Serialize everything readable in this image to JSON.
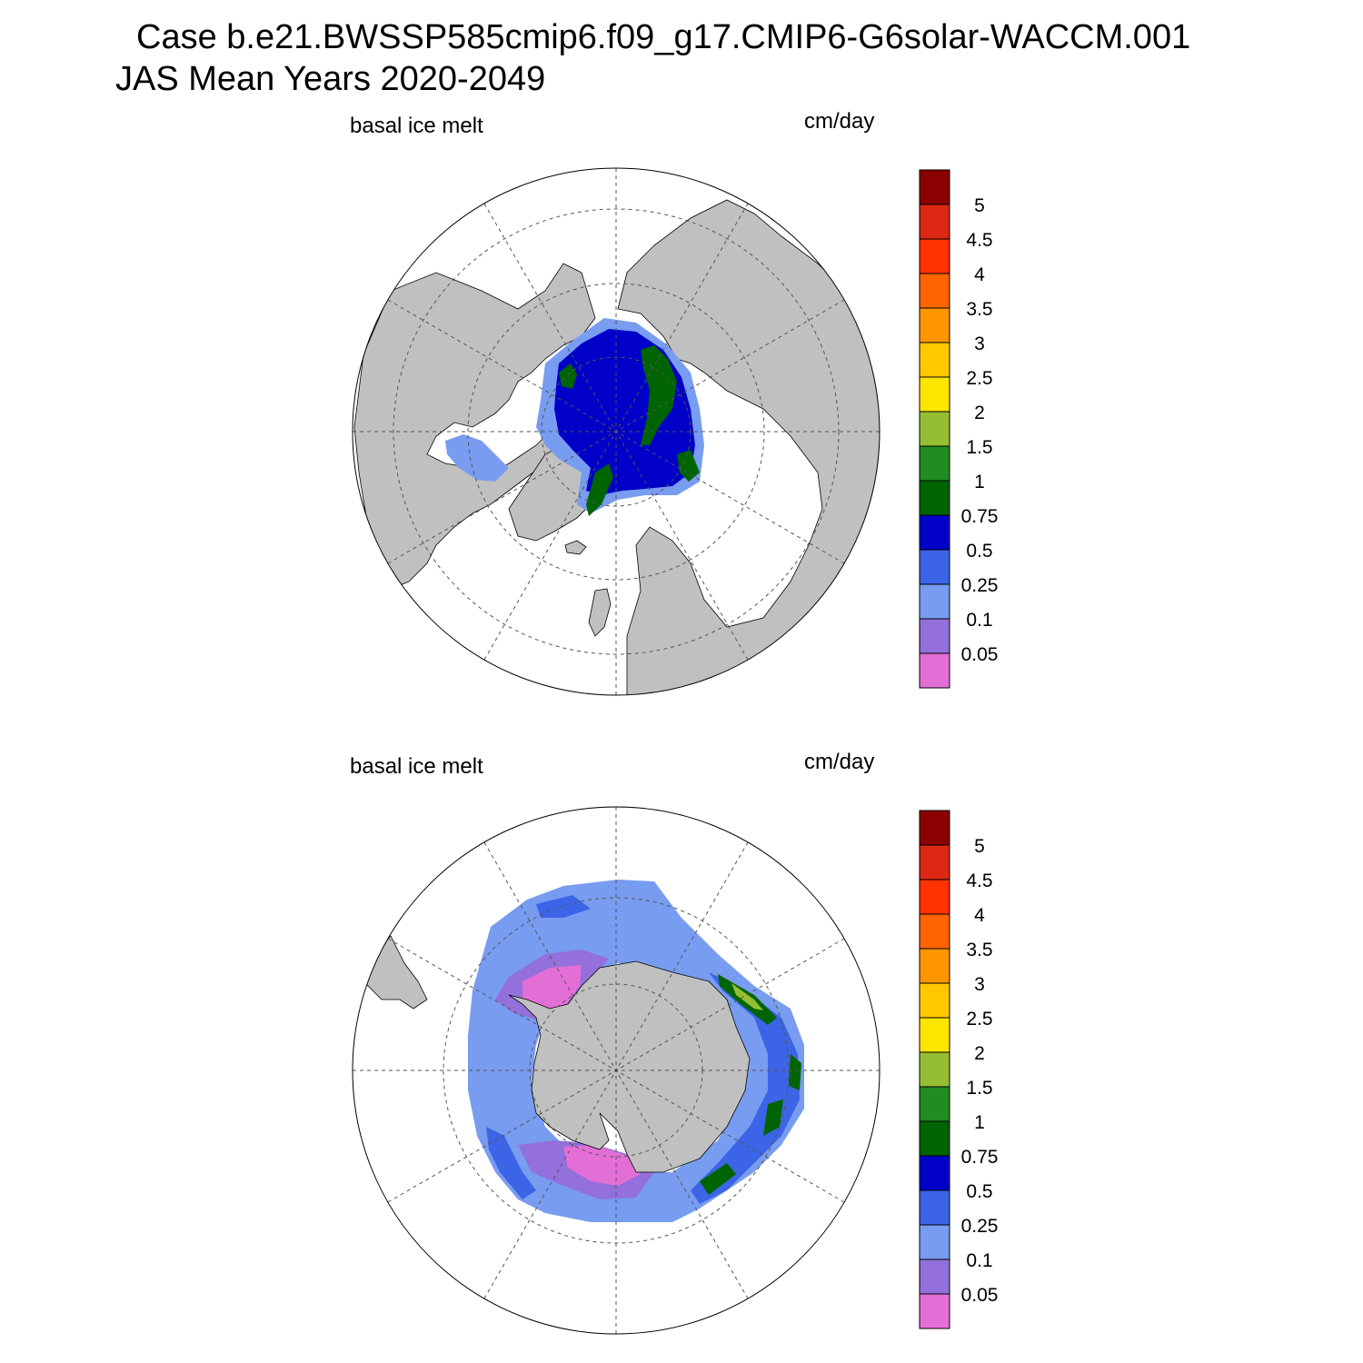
{
  "title_line1": "Case b.e21.BWSSP585cmip6.f09_g17.CMIP6-G6solar-WACCM.001",
  "title_line2": "JAS Mean   Years 2020-2049",
  "colors": {
    "land": "#c0c0c0",
    "ocean": "#ffffff",
    "grid": "#555555"
  },
  "colorbar": {
    "colors": [
      "#e36fd6",
      "#9370db",
      "#789cf0",
      "#3c64e6",
      "#0000c8",
      "#006400",
      "#228b22",
      "#96be32",
      "#ffe600",
      "#ffc800",
      "#ff9600",
      "#ff6400",
      "#ff3200",
      "#dc2814",
      "#8b0000"
    ],
    "labels": [
      "0.05",
      "0.1",
      "0.25",
      "0.5",
      "0.75",
      "1",
      "1.5",
      "2",
      "2.5",
      "3",
      "3.5",
      "4",
      "4.5",
      "5"
    ]
  },
  "panels": [
    {
      "id": "north",
      "left_label": "basal ice melt",
      "right_label": "cm/day"
    },
    {
      "id": "south",
      "left_label": "basal ice melt",
      "right_label": "cm/day"
    }
  ]
}
